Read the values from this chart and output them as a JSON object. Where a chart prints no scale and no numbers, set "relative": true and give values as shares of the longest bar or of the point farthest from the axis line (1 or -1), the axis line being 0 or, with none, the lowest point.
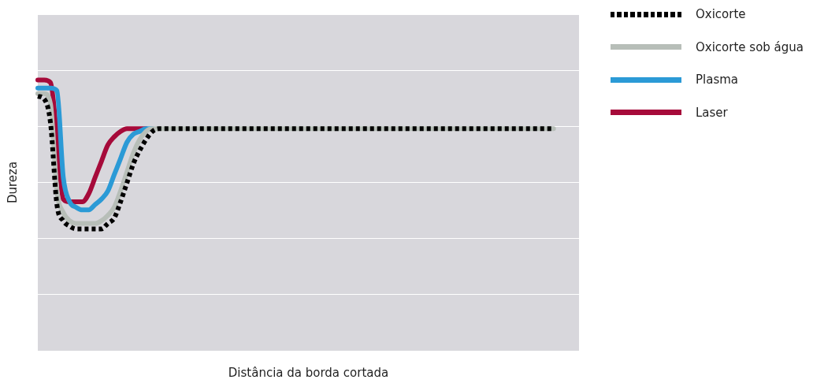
{
  "chart_data": {
    "type": "line",
    "xlabel": "Distância da borda cortada",
    "ylabel": "Dureza",
    "relative": true,
    "grid": "y",
    "legend": "top right",
    "categories": [
      null,
      null,
      null,
      null,
      null,
      null,
      null,
      null,
      null,
      null,
      null,
      null,
      null,
      null,
      null,
      null,
      null,
      null,
      null,
      null,
      null,
      null,
      null,
      null,
      null,
      null,
      null,
      null,
      null,
      null,
      null,
      null,
      null,
      null,
      null,
      null,
      null,
      null,
      null,
      null,
      null,
      null,
      null,
      null,
      null,
      null,
      null,
      null,
      null,
      null,
      null,
      null,
      null,
      null,
      null,
      null,
      null,
      null,
      null,
      null,
      null,
      null,
      null,
      null,
      null,
      null,
      null,
      null,
      null,
      null,
      null,
      null,
      null,
      null,
      null,
      null,
      null,
      null,
      null,
      null,
      null,
      null,
      null,
      null,
      null,
      null
    ],
    "series": [
      {
        "name": "Oxicorte",
        "color": "#000000",
        "line_style": "dotted",
        "values": [
          0.94,
          0.93,
          0.84,
          0.54,
          0.48,
          0.46,
          0.45,
          0.45,
          0.45,
          0.45,
          0.45,
          0.47,
          0.49,
          0.55,
          0.62,
          0.69,
          0.74,
          0.78,
          0.81,
          0.82,
          0.82,
          0.82,
          0.82,
          0.82,
          0.82,
          0.82,
          0.82,
          0.82,
          0.82,
          0.82,
          0.82,
          0.82,
          0.82,
          0.82,
          0.82,
          0.82,
          0.82,
          0.82,
          0.82,
          0.82,
          0.82,
          0.82,
          0.82,
          0.82,
          0.82,
          0.82,
          0.82,
          0.82,
          0.82,
          0.82,
          0.82,
          0.82,
          0.82,
          0.82,
          0.82,
          0.82,
          0.82,
          0.82,
          0.82,
          0.82,
          0.82,
          0.82,
          0.82,
          0.82,
          0.82,
          0.82,
          0.82,
          0.82,
          0.82,
          0.82,
          0.82,
          0.82,
          0.82,
          0.82,
          0.82,
          0.82,
          0.82,
          0.82,
          0.82,
          0.82,
          0.82,
          0.82,
          null,
          null,
          null,
          null
        ]
      },
      {
        "name": "Oxicorte sob água",
        "color": "#b7beb8",
        "line_style": "solid",
        "values": [
          0.95,
          0.95,
          0.91,
          0.59,
          0.51,
          0.48,
          0.47,
          0.47,
          0.47,
          0.47,
          0.48,
          0.5,
          0.53,
          0.59,
          0.66,
          0.73,
          0.78,
          0.81,
          0.82,
          0.82,
          0.82,
          0.82,
          0.82,
          0.82,
          0.82,
          0.82,
          0.82,
          0.82,
          0.82,
          0.82,
          0.82,
          0.82,
          0.82,
          0.82,
          0.82,
          0.82,
          0.82,
          0.82,
          0.82,
          0.82,
          0.82,
          0.82,
          0.82,
          0.82,
          0.82,
          0.82,
          0.82,
          0.82,
          0.82,
          0.82,
          0.82,
          0.82,
          0.82,
          0.82,
          0.82,
          0.82,
          0.82,
          0.82,
          0.82,
          0.82,
          0.82,
          0.82,
          0.82,
          0.82,
          0.82,
          0.82,
          0.82,
          0.82,
          0.82,
          0.82,
          0.82,
          0.82,
          0.82,
          0.82,
          0.82,
          0.82,
          0.82,
          0.82,
          0.82,
          0.82,
          0.82,
          0.82,
          null,
          null,
          null,
          null
        ]
      },
      {
        "name": "Plasma",
        "color": "#2b9ad6",
        "line_style": "solid",
        "values": [
          0.97,
          0.97,
          0.97,
          0.96,
          0.64,
          0.55,
          0.53,
          0.52,
          0.52,
          0.54,
          0.56,
          0.59,
          0.65,
          0.71,
          0.77,
          0.8,
          0.81,
          0.82,
          0.82,
          null,
          null,
          null,
          null,
          null,
          null,
          null,
          null,
          null,
          null,
          null,
          null,
          null,
          null,
          null,
          null,
          null,
          null,
          null,
          null,
          null,
          null,
          null,
          null,
          null,
          null,
          null,
          null,
          null,
          null,
          null,
          null,
          null,
          null,
          null,
          null,
          null,
          null,
          null,
          null,
          null,
          null,
          null,
          null,
          null,
          null,
          null,
          null,
          null,
          null,
          null,
          null,
          null,
          null,
          null,
          null,
          null,
          null,
          null,
          null,
          null,
          null,
          null,
          null,
          null,
          null,
          null
        ]
      },
      {
        "name": "Laser",
        "color": "#a60a3a",
        "line_style": "solid",
        "values": [
          1,
          1,
          0.99,
          0.79,
          0.56,
          0.55,
          0.55,
          0.55,
          0.58,
          0.64,
          0.7,
          0.76,
          0.79,
          0.81,
          0.82,
          0.82,
          0.82,
          0.82,
          null,
          null,
          null,
          null,
          null,
          null,
          null,
          null,
          null,
          null,
          null,
          null,
          null,
          null,
          null,
          null,
          null,
          null,
          null,
          null,
          null,
          null,
          null,
          null,
          null,
          null,
          null,
          null,
          null,
          null,
          null,
          null,
          null,
          null,
          null,
          null,
          null,
          null,
          null,
          null,
          null,
          null,
          null,
          null,
          null,
          null,
          null,
          null,
          null,
          null,
          null,
          null,
          null,
          null,
          null,
          null,
          null,
          null,
          null,
          null,
          null,
          null,
          null,
          null,
          null,
          null,
          null,
          null
        ]
      }
    ]
  }
}
